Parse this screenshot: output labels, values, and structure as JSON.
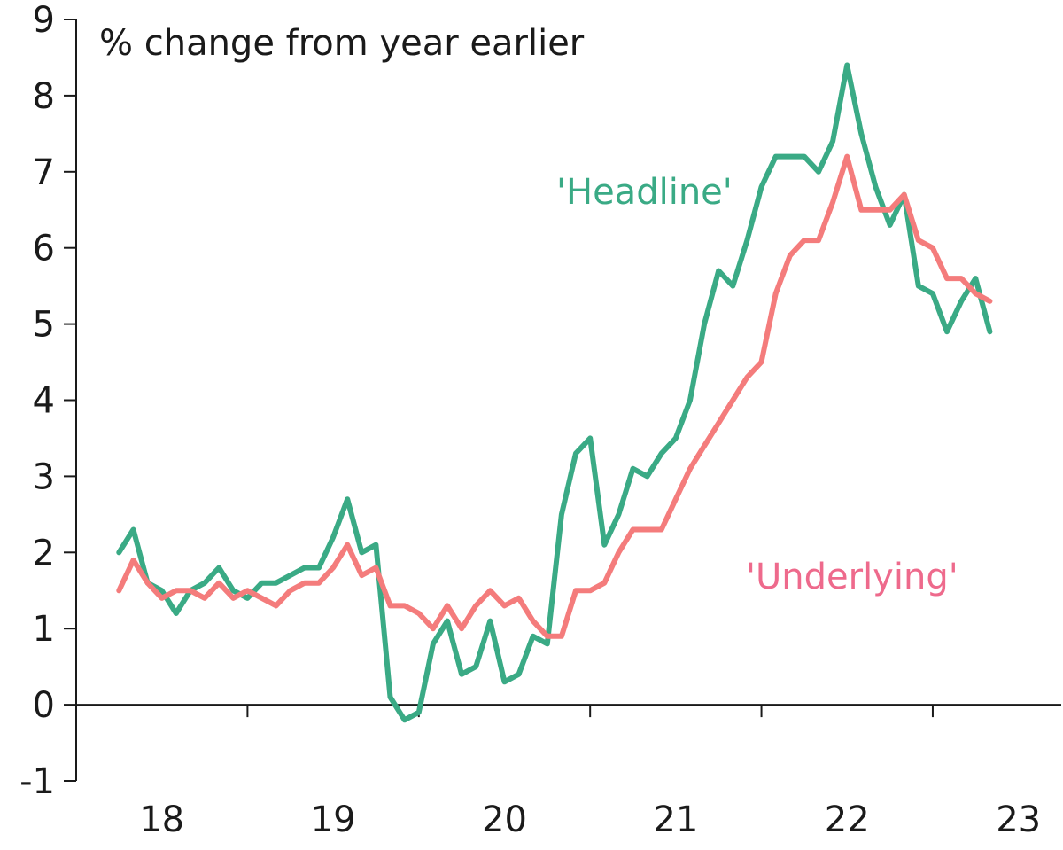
{
  "chart_data": {
    "type": "line",
    "title": "% change from year earlier",
    "xlabel": "",
    "ylabel": "",
    "ylim": [
      -1,
      9
    ],
    "xlim": [
      2018.0,
      2023.75
    ],
    "yticks": [
      -1,
      0,
      1,
      2,
      3,
      4,
      5,
      6,
      7,
      8,
      9
    ],
    "xtick_labels": [
      "18",
      "19",
      "20",
      "21",
      "22",
      "23"
    ],
    "grid": false,
    "colors": {
      "headline": "#3aaa85",
      "underlying": "#f47c7c",
      "underlying_label": "#ee6a8c",
      "axis": "#1a1a1a"
    },
    "series": [
      {
        "name": "'Headline'",
        "start": 2018.25,
        "step": 0.08333,
        "values": [
          2.0,
          2.3,
          1.6,
          1.5,
          1.2,
          1.5,
          1.6,
          1.8,
          1.5,
          1.4,
          1.6,
          1.6,
          1.7,
          1.8,
          1.8,
          2.2,
          2.7,
          2.0,
          2.1,
          0.1,
          -0.2,
          -0.1,
          0.8,
          1.1,
          0.4,
          0.5,
          1.1,
          0.3,
          0.4,
          0.9,
          0.8,
          2.5,
          3.3,
          3.5,
          2.1,
          2.5,
          3.1,
          3.0,
          3.3,
          3.5,
          4.0,
          5.0,
          5.7,
          5.5,
          6.1,
          6.8,
          7.2,
          7.2,
          7.2,
          7.0,
          7.4,
          8.4,
          7.5,
          6.8,
          6.3,
          6.7,
          5.5,
          5.4,
          4.9,
          5.3,
          5.6,
          4.9
        ]
      },
      {
        "name": "'Underlying'",
        "start": 2018.25,
        "step": 0.08333,
        "values": [
          1.5,
          1.9,
          1.6,
          1.4,
          1.5,
          1.5,
          1.4,
          1.6,
          1.4,
          1.5,
          1.4,
          1.3,
          1.5,
          1.6,
          1.6,
          1.8,
          2.1,
          1.7,
          1.8,
          1.3,
          1.3,
          1.2,
          1.0,
          1.3,
          1.0,
          1.3,
          1.5,
          1.3,
          1.4,
          1.1,
          0.9,
          0.9,
          1.5,
          1.5,
          1.6,
          2.0,
          2.3,
          2.3,
          2.3,
          2.7,
          3.1,
          3.4,
          3.7,
          4.0,
          4.3,
          4.5,
          5.4,
          5.9,
          6.1,
          6.1,
          6.6,
          7.2,
          6.5,
          6.5,
          6.5,
          6.7,
          6.1,
          6.0,
          5.6,
          5.6,
          5.4,
          5.3
        ]
      }
    ]
  }
}
